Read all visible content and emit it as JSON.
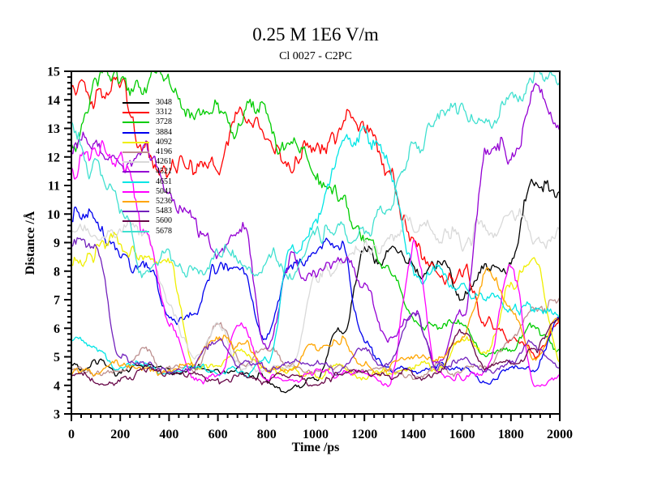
{
  "title": "0.25 M 1E6 V/m",
  "subtitle": "Cl 0027 - C2PC",
  "chart_data": {
    "type": "line",
    "title": "0.25 M 1E6 V/m",
    "subtitle": "Cl 0027 - C2PC",
    "xlabel": "Time /ps",
    "ylabel": "Distance /Å",
    "xlim": [
      0,
      2000
    ],
    "ylim": [
      3,
      15
    ],
    "x_major_tick": 200,
    "x_minor_tick": 40,
    "y_major_tick": 1,
    "y_minor_tick": 0.2,
    "grid": false,
    "legend_position": "upper-left-inside",
    "axis_color": "#000000",
    "x_tick_labels": [
      "0",
      "200",
      "400",
      "600",
      "800",
      "1000",
      "1200",
      "1400",
      "1600",
      "1800",
      "2000"
    ],
    "y_tick_labels": [
      "3",
      "4",
      "5",
      "6",
      "7",
      "8",
      "9",
      "10",
      "11",
      "12",
      "13",
      "14",
      "15"
    ],
    "x_waypoints": [
      0,
      100,
      200,
      300,
      400,
      500,
      600,
      700,
      800,
      900,
      1000,
      1100,
      1200,
      1300,
      1400,
      1500,
      1600,
      1700,
      1800,
      1900,
      2000
    ],
    "series": [
      {
        "name": "3048",
        "color": "#000000",
        "values": [
          4.6,
          4.8,
          4.4,
          4.6,
          4.3,
          4.5,
          4.4,
          4.6,
          4.1,
          3.8,
          4.4,
          5.7,
          8.5,
          8.8,
          7.9,
          8.4,
          7.1,
          8.5,
          8.3,
          11.5,
          10.9
        ]
      },
      {
        "name": "3312",
        "color": "#ff0000",
        "values": [
          14.8,
          13.9,
          14.5,
          11.9,
          11.4,
          11.5,
          11.8,
          13.4,
          12.7,
          12.0,
          12.5,
          12.9,
          13.0,
          11.4,
          8.9,
          8.1,
          7.9,
          6.3,
          5.7,
          5.0,
          6.3
        ]
      },
      {
        "name": "3728",
        "color": "#00cc00",
        "values": [
          12.3,
          14.6,
          14.9,
          15.0,
          14.6,
          13.4,
          13.7,
          13.0,
          13.2,
          12.4,
          11.5,
          10.4,
          8.8,
          7.8,
          6.3,
          5.9,
          6.1,
          5.2,
          5.2,
          6.0,
          5.1
        ]
      },
      {
        "name": "3884",
        "color": "#0000ee",
        "values": [
          10.3,
          10.0,
          8.6,
          8.1,
          6.5,
          6.3,
          8.2,
          7.7,
          5.7,
          7.9,
          8.4,
          9.1,
          5.5,
          4.7,
          4.6,
          4.9,
          4.6,
          4.1,
          4.6,
          4.5,
          6.3
        ]
      },
      {
        "name": "4092",
        "color": "#efef00",
        "values": [
          8.2,
          8.8,
          9.1,
          8.9,
          8.6,
          4.6,
          4.8,
          5.4,
          4.5,
          4.4,
          4.5,
          4.7,
          4.4,
          4.6,
          4.5,
          4.7,
          5.6,
          5.1,
          7.5,
          8.1,
          4.8
        ]
      },
      {
        "name": "4196",
        "color": "#bc8f8f",
        "values": [
          4.5,
          4.4,
          4.6,
          5.1,
          4.5,
          4.4,
          6.3,
          4.7,
          5.2,
          4.5,
          4.4,
          4.6,
          4.5,
          4.7,
          4.5,
          4.6,
          4.5,
          4.6,
          5.5,
          6.9,
          6.8
        ]
      },
      {
        "name": "4261",
        "color": "#d9d9d9",
        "values": [
          9.4,
          9.1,
          9.5,
          9.0,
          6.9,
          4.8,
          6.0,
          4.7,
          4.6,
          4.8,
          7.8,
          8.3,
          8.6,
          9.4,
          9.3,
          9.5,
          9.1,
          9.7,
          10.3,
          9.2,
          9.5
        ]
      },
      {
        "name": "4521",
        "color": "#9400d3",
        "values": [
          12.5,
          12.2,
          11.6,
          11.9,
          10.6,
          9.7,
          9.0,
          9.2,
          5.5,
          8.3,
          7.9,
          8.2,
          7.8,
          5.6,
          6.8,
          4.6,
          6.5,
          11.8,
          12.3,
          14.1,
          13.0
        ]
      },
      {
        "name": "4651",
        "color": "#00e5e5",
        "values": [
          5.7,
          5.3,
          4.6,
          4.8,
          4.5,
          4.7,
          4.6,
          4.5,
          4.7,
          8.7,
          9.6,
          12.6,
          12.3,
          12.0,
          8.2,
          7.9,
          7.8,
          7.0,
          6.7,
          6.8,
          6.5
        ]
      },
      {
        "name": "5041",
        "color": "#ff00ff",
        "values": [
          11.8,
          12.2,
          11.4,
          9.6,
          6.5,
          4.4,
          4.3,
          6.0,
          4.3,
          4.2,
          4.4,
          4.3,
          4.4,
          4.2,
          8.8,
          4.3,
          4.2,
          4.6,
          7.9,
          3.9,
          4.1
        ]
      },
      {
        "name": "5236",
        "color": "#ffa500",
        "values": [
          4.6,
          4.5,
          4.7,
          4.6,
          4.5,
          4.7,
          5.9,
          5.4,
          4.6,
          4.5,
          5.3,
          5.8,
          4.6,
          4.5,
          5.3,
          4.9,
          5.6,
          7.9,
          6.6,
          4.8,
          6.2
        ]
      },
      {
        "name": "5483",
        "color": "#7221bc",
        "values": [
          9.2,
          8.8,
          5.0,
          4.7,
          4.6,
          4.8,
          5.6,
          4.7,
          4.6,
          4.8,
          4.7,
          4.6,
          5.1,
          4.7,
          6.6,
          4.7,
          4.8,
          4.6,
          4.8,
          5.4,
          4.7
        ]
      },
      {
        "name": "5600",
        "color": "#670748",
        "values": [
          4.4,
          4.2,
          4.3,
          4.4,
          4.2,
          4.4,
          4.3,
          4.5,
          4.2,
          4.4,
          4.0,
          4.3,
          4.5,
          4.4,
          4.3,
          4.5,
          5.9,
          4.4,
          4.6,
          5.2,
          6.7
        ]
      },
      {
        "name": "5678",
        "color": "#40e0d0",
        "values": [
          12.8,
          11.4,
          10.0,
          8.0,
          8.4,
          8.0,
          8.7,
          8.2,
          8.6,
          8.1,
          9.1,
          9.4,
          9.0,
          9.9,
          12.6,
          13.1,
          14.0,
          12.6,
          13.6,
          14.8,
          14.9
        ]
      }
    ]
  }
}
